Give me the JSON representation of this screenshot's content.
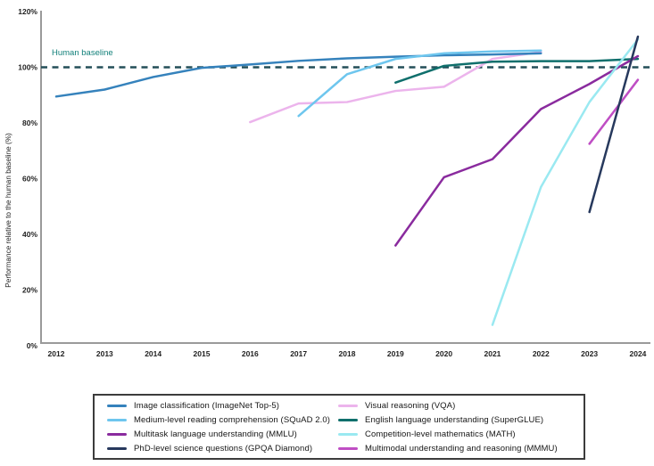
{
  "chart_data": {
    "type": "line",
    "title": "",
    "ylabel": "Performance relative to the human baseline (%)",
    "xlabel": "",
    "x_ticks": [
      "2012",
      "2013",
      "2014",
      "2015",
      "2016",
      "2017",
      "2018",
      "2019",
      "2020",
      "2021",
      "2022",
      "2023",
      "2024"
    ],
    "y_ticks": [
      "0%",
      "20%",
      "40%",
      "60%",
      "80%",
      "100%",
      "120%"
    ],
    "ylim": [
      0,
      120
    ],
    "xlim": [
      2012,
      2024
    ],
    "grid": false,
    "legend_position": "bottom-boxed-two-columns",
    "baseline": {
      "value": 100,
      "label": "Human baseline",
      "line_color": "#234f58",
      "label_color": "#12807a",
      "style": "dashed"
    },
    "axis_color": "#9a9a9a",
    "tick_label_color": "#222222",
    "series": [
      {
        "name": "Image classification (ImageNet Top-5)",
        "color": "#3582bc",
        "points": [
          [
            2012,
            89.5
          ],
          [
            2013,
            92
          ],
          [
            2014,
            96.5
          ],
          [
            2015,
            99.8
          ],
          [
            2016,
            101
          ],
          [
            2017,
            102.3
          ],
          [
            2018,
            103.2
          ],
          [
            2019,
            103.8
          ],
          [
            2020,
            104.3
          ],
          [
            2021,
            104.6
          ],
          [
            2022,
            105
          ]
        ]
      },
      {
        "name": "Medium-level reading comprehension (SQuAD 2.0)",
        "color": "#6ec6ee",
        "points": [
          [
            2017,
            82.5
          ],
          [
            2018,
            97.5
          ],
          [
            2019,
            103
          ],
          [
            2020,
            105
          ],
          [
            2021,
            105.7
          ],
          [
            2022,
            106
          ]
        ]
      },
      {
        "name": "Multitask language understanding (MMLU)",
        "color": "#8a2b9e",
        "points": [
          [
            2019,
            36
          ],
          [
            2020,
            60.5
          ],
          [
            2021,
            67
          ],
          [
            2022,
            85
          ],
          [
            2023,
            94
          ],
          [
            2024,
            104
          ]
        ]
      },
      {
        "name": "PhD-level science questions (GPQA Diamond)",
        "color": "#27395d",
        "points": [
          [
            2023,
            48
          ],
          [
            2024,
            111
          ]
        ]
      },
      {
        "name": "Visual reasoning (VQA)",
        "color": "#ecb4ec",
        "points": [
          [
            2016,
            80.3
          ],
          [
            2017,
            87
          ],
          [
            2018,
            87.5
          ],
          [
            2019,
            91.5
          ],
          [
            2020,
            93
          ],
          [
            2021,
            103
          ],
          [
            2022,
            105.5
          ]
        ]
      },
      {
        "name": "English language understanding (SuperGLUE)",
        "color": "#0f6f6c",
        "points": [
          [
            2019,
            94.5
          ],
          [
            2020,
            100.5
          ],
          [
            2021,
            102
          ],
          [
            2022,
            102.2
          ],
          [
            2023,
            102.2
          ],
          [
            2024,
            103
          ]
        ]
      },
      {
        "name": "Competition-level mathematics (MATH)",
        "color": "#9ae9f1",
        "points": [
          [
            2021,
            7.5
          ],
          [
            2022,
            57
          ],
          [
            2023,
            87.5
          ],
          [
            2024,
            110
          ]
        ]
      },
      {
        "name": "Multimodal understanding and reasoning (MMMU)",
        "color": "#bf4ec4",
        "points": [
          [
            2023,
            72.5
          ],
          [
            2024,
            95.5
          ]
        ]
      }
    ]
  }
}
